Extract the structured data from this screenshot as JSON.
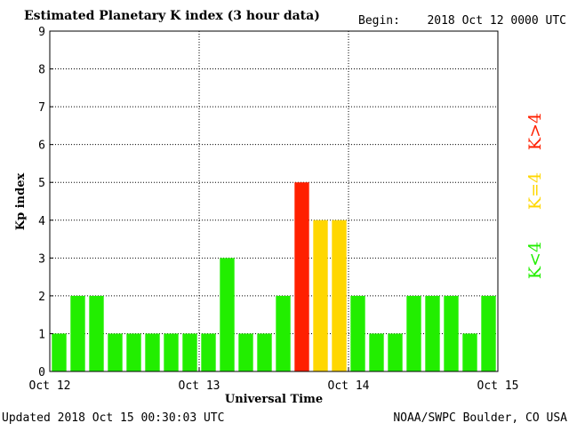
{
  "header": {
    "title": "Estimated Planetary K index (3 hour data)",
    "begin_label": "Begin:",
    "begin_value": "2018 Oct 12 0000 UTC"
  },
  "footer": {
    "updated": "Updated 2018 Oct 15 00:30:03 UTC",
    "credit": "NOAA/SWPC Boulder, CO USA"
  },
  "legend": {
    "low": "K<4",
    "equal": "K=4",
    "high": "K>4"
  },
  "colors": {
    "low": "#22ee00",
    "equal": "#ffd700",
    "high": "#ff2000",
    "background": "#ffffff"
  },
  "chart_data": {
    "type": "bar",
    "xlabel": "Universal Time",
    "ylabel": "Kp index",
    "ylim": [
      0,
      9
    ],
    "yticks": [
      0,
      1,
      2,
      3,
      4,
      5,
      6,
      7,
      8,
      9
    ],
    "xticks": [
      "Oct 12",
      "Oct 13",
      "Oct 14",
      "Oct 15"
    ],
    "grid": "dotted",
    "values": [
      1,
      2,
      2,
      1,
      1,
      1,
      1,
      1,
      1,
      3,
      1,
      1,
      2,
      5,
      4,
      4,
      2,
      1,
      1,
      2,
      2,
      2,
      1,
      2
    ]
  }
}
